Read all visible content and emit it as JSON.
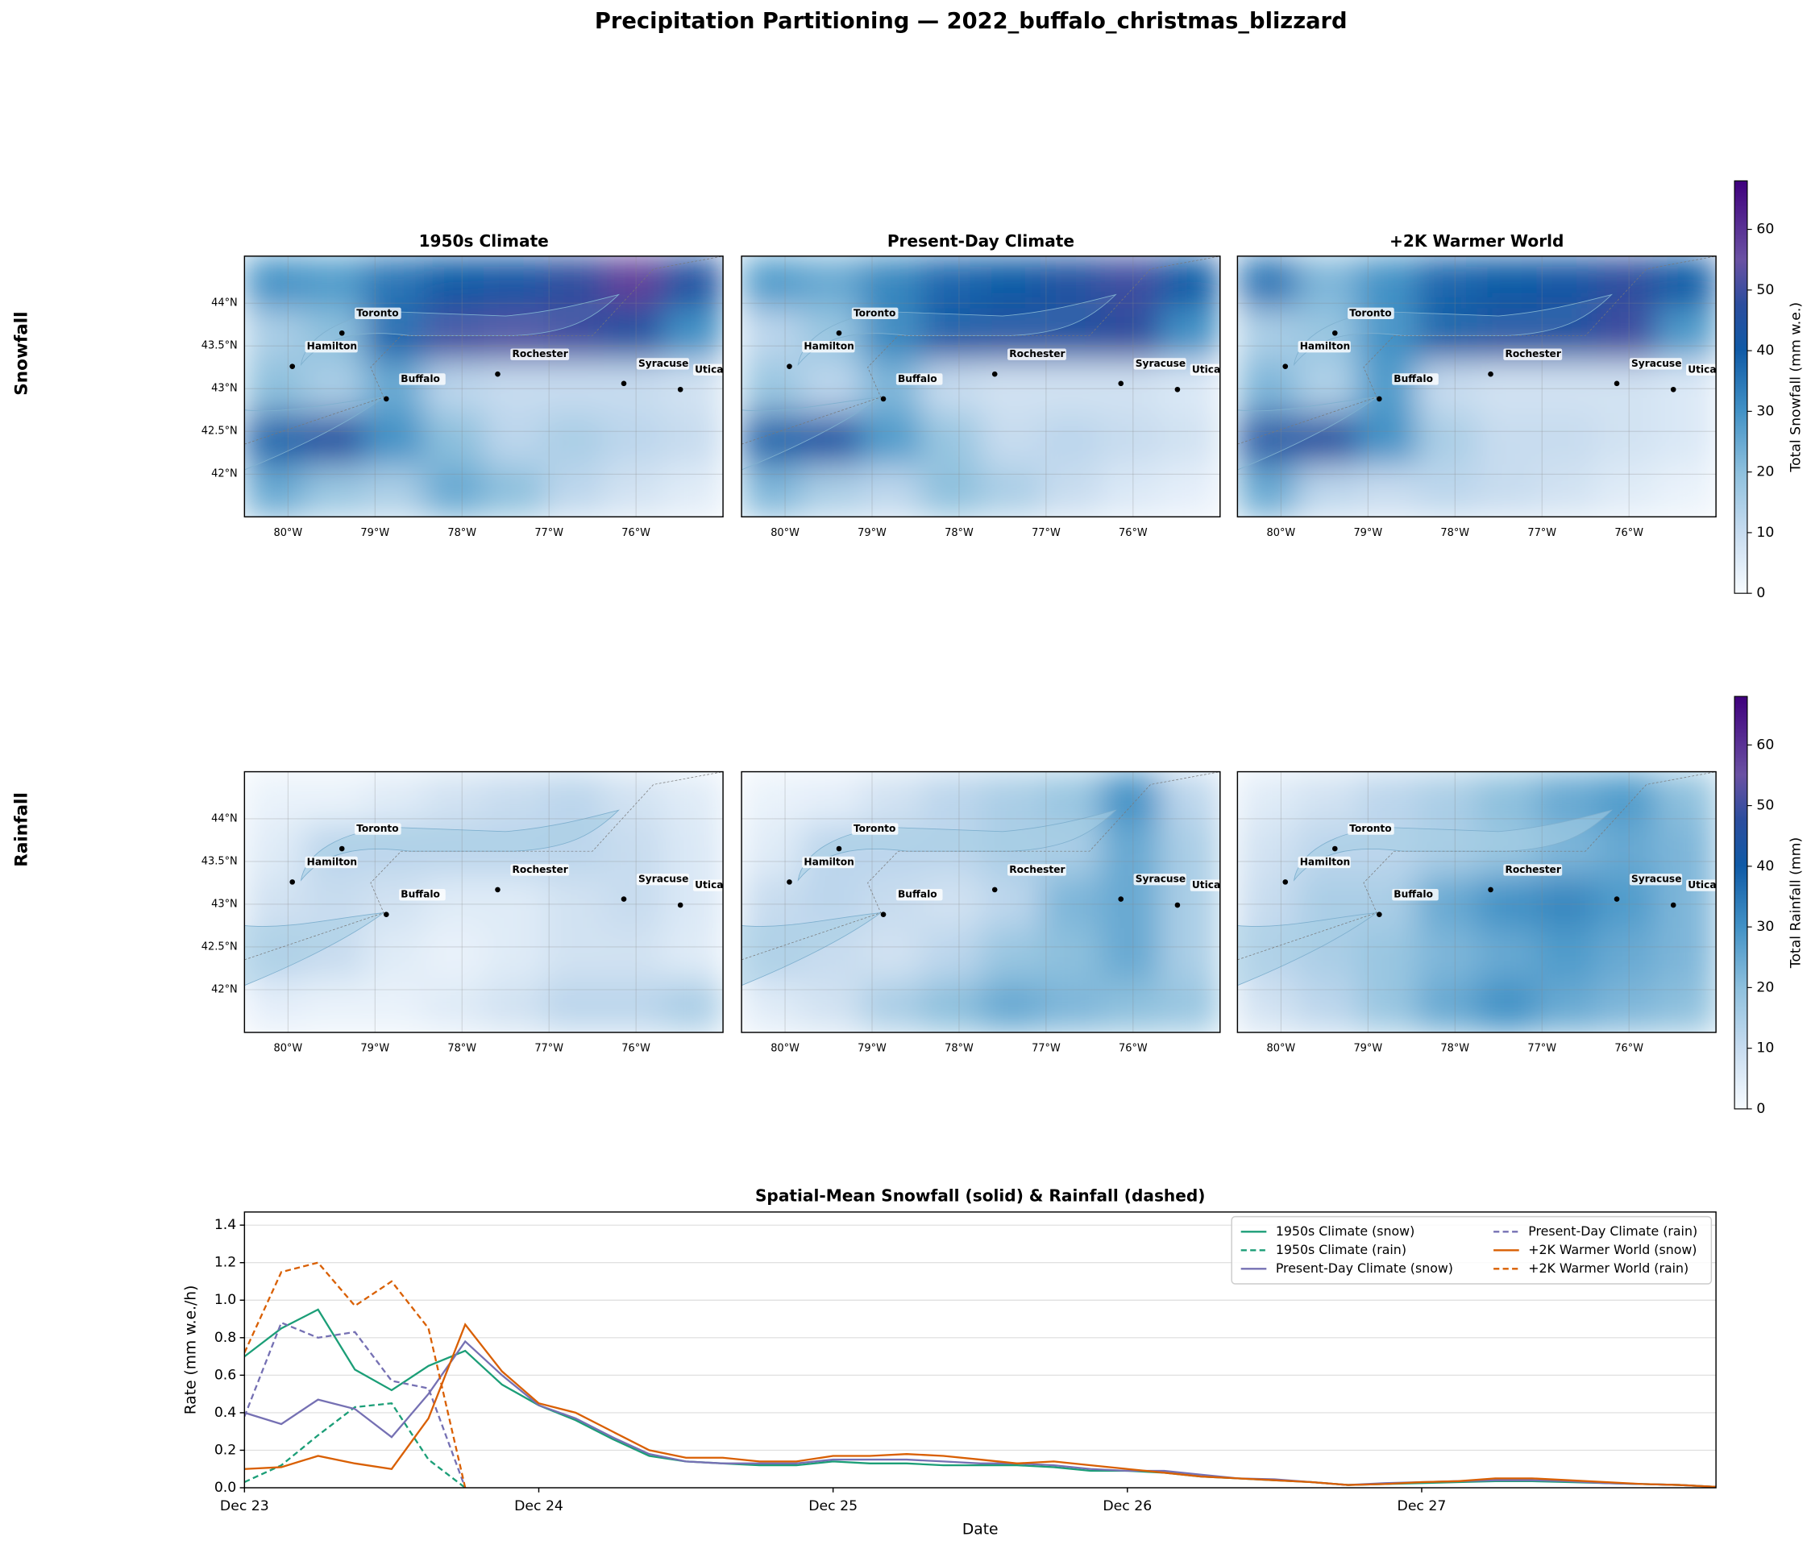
{
  "title": "Precipitation Partitioning — 2022_buffalo_christmas_blizzard",
  "row_labels": [
    "Snowfall",
    "Rainfall"
  ],
  "cities": [
    {
      "name": "Toronto",
      "lon": -79.38,
      "lat": 43.65
    },
    {
      "name": "Hamilton",
      "lon": -79.95,
      "lat": 43.26
    },
    {
      "name": "Buffalo",
      "lon": -78.87,
      "lat": 42.88
    },
    {
      "name": "Rochester",
      "lon": -77.59,
      "lat": 43.17
    },
    {
      "name": "Syracuse",
      "lon": -76.14,
      "lat": 43.06
    },
    {
      "name": "Utica",
      "lon": -75.49,
      "lat": 42.99
    }
  ],
  "chart_data": [
    {
      "type": "heatmap",
      "title": "1950s Climate",
      "xlim": [
        -80.5,
        -75
      ],
      "ylim": [
        41.5,
        44.55
      ],
      "zlim": [
        0,
        68
      ],
      "xticks": [
        {
          "value": -80,
          "label": "80°W"
        },
        {
          "value": -79,
          "label": "79°W"
        },
        {
          "value": -78,
          "label": "78°W"
        },
        {
          "value": -77,
          "label": "77°W"
        },
        {
          "value": -76,
          "label": "76°W"
        }
      ],
      "yticks": [
        {
          "value": 42,
          "label": "42°N"
        },
        {
          "value": 42.5,
          "label": "42.5°N"
        },
        {
          "value": 43,
          "label": "43°N"
        },
        {
          "value": 43.5,
          "label": "43.5°N"
        },
        {
          "value": 44,
          "label": "44°N"
        }
      ],
      "values": [
        [
          30,
          28,
          35,
          40,
          42,
          48,
          58,
          45
        ],
        [
          15,
          20,
          38,
          50,
          52,
          50,
          45,
          30
        ],
        [
          20,
          15,
          25,
          12,
          10,
          10,
          10,
          8
        ],
        [
          40,
          45,
          30,
          20,
          12,
          15,
          12,
          10
        ],
        [
          25,
          18,
          15,
          25,
          20,
          12,
          8,
          5
        ]
      ]
    },
    {
      "type": "heatmap",
      "title": "Present-Day Climate",
      "xlim": [
        -80.5,
        -75
      ],
      "ylim": [
        41.5,
        44.55
      ],
      "zlim": [
        0,
        68
      ],
      "xticks": [
        {
          "value": -80,
          "label": "80°W"
        },
        {
          "value": -79,
          "label": "79°W"
        },
        {
          "value": -78,
          "label": "78°W"
        },
        {
          "value": -77,
          "label": "77°W"
        },
        {
          "value": -76,
          "label": "76°W"
        }
      ],
      "yticks": [
        42,
        42.5,
        43,
        43.5,
        44
      ],
      "values": [
        [
          28,
          25,
          32,
          38,
          40,
          45,
          50,
          40
        ],
        [
          12,
          18,
          32,
          42,
          45,
          45,
          48,
          30
        ],
        [
          18,
          12,
          22,
          10,
          8,
          8,
          8,
          6
        ],
        [
          40,
          42,
          28,
          18,
          10,
          12,
          10,
          8
        ],
        [
          22,
          15,
          12,
          20,
          15,
          10,
          6,
          4
        ]
      ]
    },
    {
      "type": "heatmap",
      "title": "+2K Warmer World",
      "xlim": [
        -80.5,
        -75
      ],
      "ylim": [
        41.5,
        44.55
      ],
      "zlim": [
        0,
        68
      ],
      "xticks": [
        {
          "value": -80,
          "label": "80°W"
        },
        {
          "value": -79,
          "label": "79°W"
        },
        {
          "value": -78,
          "label": "78°W"
        },
        {
          "value": -77,
          "label": "77°W"
        },
        {
          "value": -76,
          "label": "76°W"
        }
      ],
      "yticks": [
        42,
        42.5,
        43,
        43.5,
        44
      ],
      "values": [
        [
          35,
          22,
          30,
          38,
          40,
          42,
          48,
          40
        ],
        [
          15,
          18,
          30,
          40,
          45,
          45,
          50,
          28
        ],
        [
          22,
          14,
          28,
          10,
          8,
          8,
          8,
          6
        ],
        [
          45,
          45,
          30,
          15,
          10,
          10,
          8,
          6
        ],
        [
          25,
          12,
          10,
          12,
          10,
          8,
          5,
          3
        ]
      ],
      "colorbar": {
        "label": "Total Snowfall (mm w.e.)",
        "lim": [
          0,
          68
        ],
        "ticks": [
          0,
          10,
          20,
          30,
          40,
          50,
          60
        ]
      }
    },
    {
      "type": "heatmap",
      "xlim": [
        -80.5,
        -75
      ],
      "ylim": [
        41.5,
        44.55
      ],
      "zlim": [
        0,
        68
      ],
      "xticks": [
        {
          "value": -80,
          "label": "80°W"
        },
        {
          "value": -79,
          "label": "79°W"
        },
        {
          "value": -78,
          "label": "78°W"
        },
        {
          "value": -77,
          "label": "77°W"
        },
        {
          "value": -76,
          "label": "76°W"
        }
      ],
      "yticks": [
        {
          "value": 42,
          "label": "42°N"
        },
        {
          "value": 42.5,
          "label": "42.5°N"
        },
        {
          "value": 43,
          "label": "43°N"
        },
        {
          "value": 43.5,
          "label": "43.5°N"
        },
        {
          "value": 44,
          "label": "44°N"
        }
      ],
      "values": [
        [
          3,
          3,
          5,
          8,
          10,
          12,
          8,
          5
        ],
        [
          5,
          12,
          12,
          12,
          12,
          12,
          10,
          6
        ],
        [
          8,
          10,
          8,
          5,
          5,
          8,
          10,
          6
        ],
        [
          12,
          10,
          5,
          3,
          5,
          8,
          8,
          5
        ],
        [
          4,
          3,
          3,
          5,
          8,
          12,
          12,
          15
        ]
      ]
    },
    {
      "type": "heatmap",
      "xlim": [
        -80.5,
        -75
      ],
      "ylim": [
        41.5,
        44.55
      ],
      "zlim": [
        0,
        68
      ],
      "xticks": [
        {
          "value": -80,
          "label": "80°W"
        },
        {
          "value": -79,
          "label": "79°W"
        },
        {
          "value": -78,
          "label": "78°W"
        },
        {
          "value": -77,
          "label": "77°W"
        },
        {
          "value": -76,
          "label": "76°W"
        }
      ],
      "yticks": [
        42,
        42.5,
        43,
        43.5,
        44
      ],
      "values": [
        [
          3,
          4,
          8,
          12,
          15,
          18,
          30,
          12
        ],
        [
          5,
          12,
          12,
          12,
          15,
          15,
          25,
          15
        ],
        [
          10,
          12,
          10,
          8,
          12,
          22,
          25,
          15
        ],
        [
          12,
          10,
          8,
          12,
          18,
          20,
          25,
          15
        ],
        [
          5,
          8,
          15,
          20,
          25,
          22,
          20,
          18
        ]
      ]
    },
    {
      "type": "heatmap",
      "xlim": [
        -80.5,
        -75
      ],
      "ylim": [
        41.5,
        44.55
      ],
      "zlim": [
        0,
        68
      ],
      "xticks": [
        {
          "value": -80,
          "label": "80°W"
        },
        {
          "value": -79,
          "label": "79°W"
        },
        {
          "value": -78,
          "label": "78°W"
        },
        {
          "value": -77,
          "label": "77°W"
        },
        {
          "value": -76,
          "label": "76°W"
        }
      ],
      "yticks": [
        42,
        42.5,
        43,
        43.5,
        44
      ],
      "values": [
        [
          5,
          8,
          12,
          15,
          20,
          25,
          28,
          20
        ],
        [
          8,
          12,
          12,
          15,
          18,
          22,
          25,
          22
        ],
        [
          10,
          15,
          15,
          25,
          30,
          32,
          28,
          22
        ],
        [
          12,
          15,
          18,
          22,
          25,
          28,
          25,
          22
        ],
        [
          8,
          12,
          18,
          25,
          30,
          25,
          22,
          20
        ]
      ],
      "colorbar": {
        "label": "Total Rainfall (mm)",
        "lim": [
          0,
          68
        ],
        "ticks": [
          0,
          10,
          20,
          30,
          40,
          50,
          60
        ]
      }
    },
    {
      "type": "line",
      "title": "Spatial-Mean Snowfall (solid) & Rainfall (dashed)",
      "x_label": "Date",
      "y_label": "Rate (mm w.e./h)",
      "xlim": [
        0,
        5
      ],
      "ylim": [
        0,
        1.47
      ],
      "xticks": [
        {
          "value": 0,
          "label": "Dec 23"
        },
        {
          "value": 1,
          "label": "Dec 24"
        },
        {
          "value": 2,
          "label": "Dec 25"
        },
        {
          "value": 3,
          "label": "Dec 26"
        },
        {
          "value": 4,
          "label": "Dec 27"
        }
      ],
      "yticks": [
        {
          "value": 0,
          "label": "0.0"
        },
        {
          "value": 0.2,
          "label": "0.2"
        },
        {
          "value": 0.4,
          "label": "0.4"
        },
        {
          "value": 0.6,
          "label": "0.6"
        },
        {
          "value": 0.8,
          "label": "0.8"
        },
        {
          "value": 1,
          "label": "1.0"
        },
        {
          "value": 1.2,
          "label": "1.2"
        },
        {
          "value": 1.4,
          "label": "1.4"
        }
      ],
      "grid": true,
      "legend": "upper right",
      "x": [
        0,
        0.125,
        0.25,
        0.375,
        0.5,
        0.625,
        0.75,
        0.875,
        1,
        1.125,
        1.25,
        1.375,
        1.5,
        1.625,
        1.75,
        1.875,
        2,
        2.125,
        2.25,
        2.375,
        2.5,
        2.625,
        2.75,
        2.875,
        3,
        3.125,
        3.25,
        3.375,
        3.5,
        3.625,
        3.75,
        3.875,
        4,
        4.125,
        4.25,
        4.375,
        4.5,
        4.625,
        4.75,
        4.875,
        5
      ],
      "series": [
        {
          "name": "1950s Climate (snow)",
          "color": "#1b9e77",
          "dash": false,
          "values": [
            0.7,
            0.85,
            0.95,
            0.63,
            0.52,
            0.65,
            0.73,
            0.55,
            0.44,
            0.36,
            0.26,
            0.17,
            0.14,
            0.13,
            0.12,
            0.12,
            0.14,
            0.13,
            0.13,
            0.12,
            0.12,
            0.12,
            0.11,
            0.09,
            0.09,
            0.08,
            0.06,
            0.05,
            0.04,
            0.03,
            0.015,
            0.02,
            0.025,
            0.03,
            0.035,
            0.035,
            0.03,
            0.025,
            0.02,
            0.015,
            0.005
          ]
        },
        {
          "name": "1950s Climate (rain)",
          "color": "#1b9e77",
          "dash": true,
          "values": [
            0.03,
            0.12,
            0.28,
            0.43,
            0.45,
            0.15,
            0,
            null,
            null,
            null,
            null,
            null,
            null,
            null,
            null,
            null,
            null,
            null,
            null,
            null,
            null,
            null,
            null,
            null,
            null,
            null,
            null,
            null,
            null,
            null,
            null,
            null,
            null,
            null,
            null,
            null,
            null,
            null,
            null,
            null,
            null
          ]
        },
        {
          "name": "Present-Day Climate (snow)",
          "color": "#7570b3",
          "dash": false,
          "values": [
            0.4,
            0.34,
            0.47,
            0.42,
            0.27,
            0.5,
            0.78,
            0.6,
            0.44,
            0.37,
            0.27,
            0.18,
            0.14,
            0.13,
            0.13,
            0.13,
            0.15,
            0.15,
            0.15,
            0.14,
            0.13,
            0.13,
            0.12,
            0.1,
            0.09,
            0.09,
            0.07,
            0.05,
            0.045,
            0.03,
            0.015,
            0.025,
            0.03,
            0.035,
            0.04,
            0.04,
            0.035,
            0.025,
            0.02,
            0.015,
            0.005
          ]
        },
        {
          "name": "Present-Day Climate (rain)",
          "color": "#7570b3",
          "dash": true,
          "values": [
            0.38,
            0.88,
            0.8,
            0.83,
            0.57,
            0.53,
            0,
            null,
            null,
            null,
            null,
            null,
            null,
            null,
            null,
            null,
            null,
            null,
            null,
            null,
            null,
            null,
            null,
            null,
            null,
            null,
            null,
            null,
            null,
            null,
            null,
            null,
            null,
            null,
            null,
            null,
            null,
            null,
            null,
            null,
            null
          ]
        },
        {
          "name": "+2K Warmer World (snow)",
          "color": "#d95f02",
          "dash": false,
          "values": [
            0.1,
            0.11,
            0.17,
            0.13,
            0.1,
            0.37,
            0.87,
            0.62,
            0.45,
            0.4,
            0.3,
            0.2,
            0.16,
            0.16,
            0.14,
            0.14,
            0.17,
            0.17,
            0.18,
            0.17,
            0.15,
            0.13,
            0.14,
            0.12,
            0.1,
            0.08,
            0.06,
            0.05,
            0.04,
            0.03,
            0.015,
            0.02,
            0.03,
            0.035,
            0.05,
            0.05,
            0.04,
            0.03,
            0.02,
            0.015,
            0.005
          ]
        },
        {
          "name": "+2K Warmer World (rain)",
          "color": "#d95f02",
          "dash": true,
          "values": [
            0.72,
            1.15,
            1.2,
            0.97,
            1.1,
            0.85,
            0,
            null,
            null,
            null,
            null,
            null,
            null,
            null,
            null,
            null,
            null,
            null,
            null,
            null,
            null,
            null,
            null,
            null,
            null,
            null,
            null,
            null,
            null,
            null,
            null,
            null,
            null,
            null,
            null,
            null,
            null,
            null,
            null,
            null,
            null
          ]
        }
      ]
    }
  ]
}
